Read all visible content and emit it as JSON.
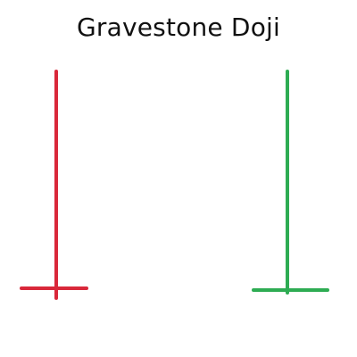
{
  "title": "Gravestone Doji",
  "colors": {
    "bearish": "#d9283a",
    "bullish": "#2eac53",
    "background": "#ffffff",
    "text": "#111111"
  },
  "candles": [
    {
      "label": "bearish-gravestone-doji",
      "color_key": "bearish"
    },
    {
      "label": "bullish-gravestone-doji",
      "color_key": "bullish"
    }
  ]
}
